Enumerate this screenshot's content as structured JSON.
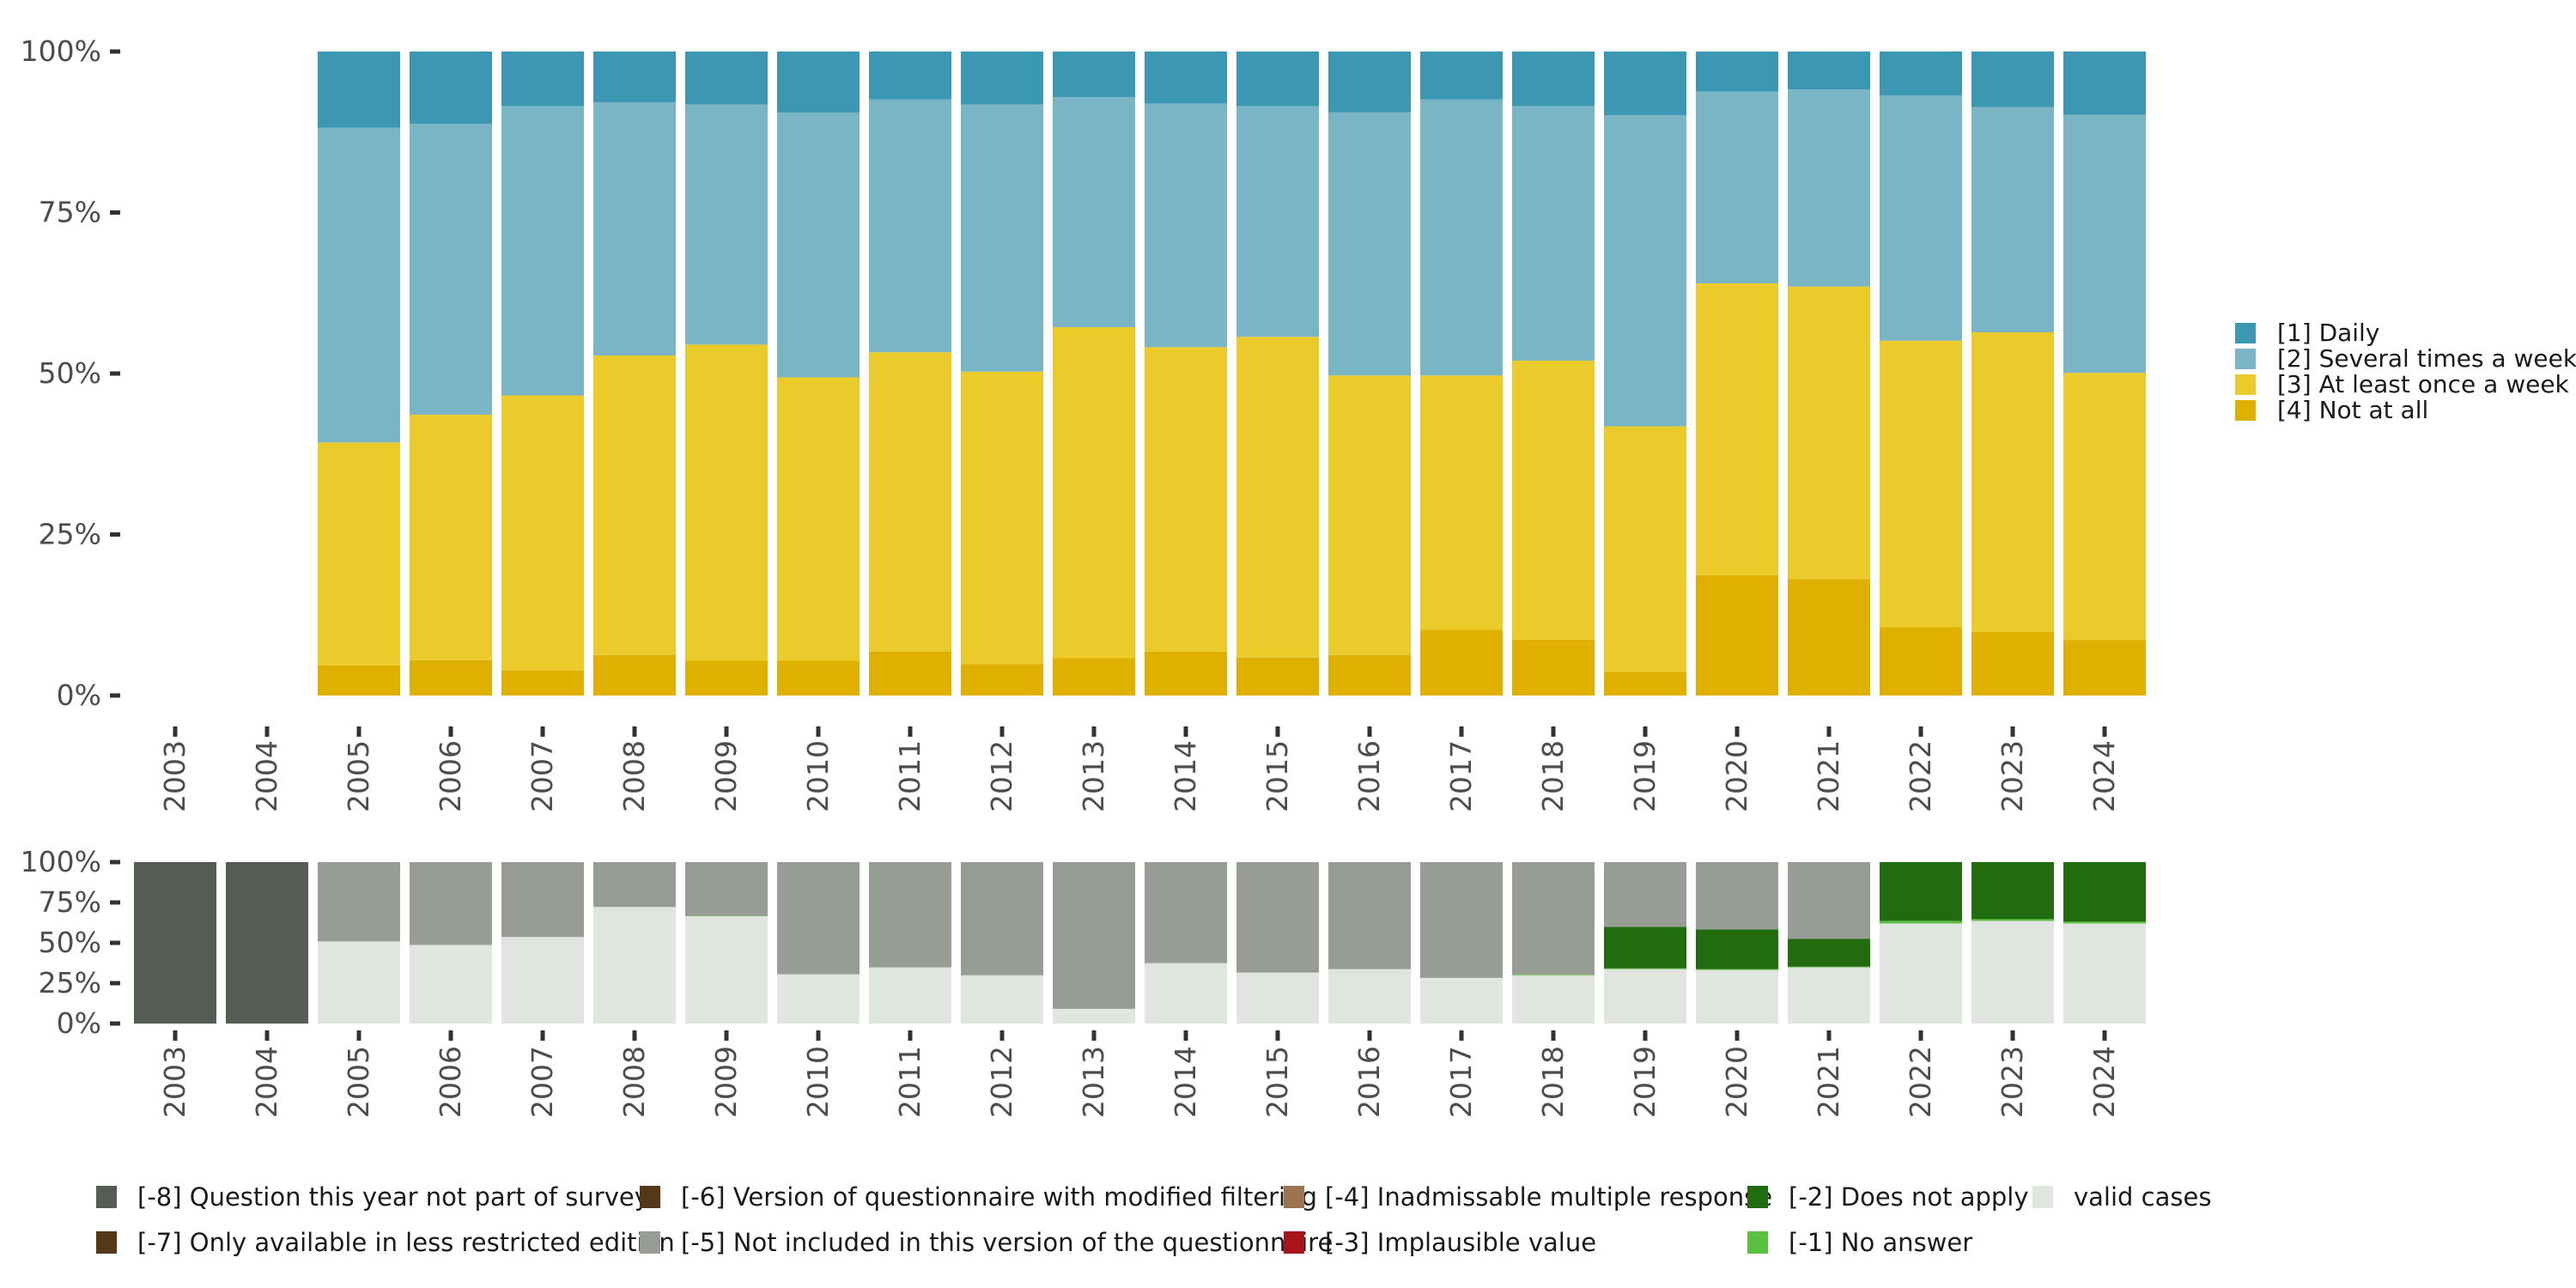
{
  "chart_data": [
    {
      "type": "bar",
      "stacked": true,
      "normalized": true,
      "title": "",
      "xlabel": "",
      "ylabel": "",
      "ylim": [
        0,
        100
      ],
      "y_ticks": [
        "0%",
        "25%",
        "50%",
        "75%",
        "100%"
      ],
      "y_tick_values": [
        0,
        25,
        50,
        75,
        100
      ],
      "categories": [
        "2003",
        "2004",
        "2005",
        "2006",
        "2007",
        "2008",
        "2009",
        "2010",
        "2011",
        "2012",
        "2013",
        "2014",
        "2015",
        "2016",
        "2017",
        "2018",
        "2019",
        "2020",
        "2021",
        "2022",
        "2023",
        "2024"
      ],
      "legend_position": "right",
      "series": [
        {
          "name": "[4] Not at all",
          "color": "#E0B000",
          "values": [
            null,
            null,
            4.7,
            5.5,
            3.9,
            6.3,
            5.4,
            5.4,
            6.8,
            4.9,
            5.8,
            6.8,
            5.9,
            6.3,
            10.2,
            8.7,
            3.7,
            18.7,
            18.1,
            10.6,
            9.9,
            8.6
          ]
        },
        {
          "name": "[3] At least once a week",
          "color": "#EACB2B",
          "values": [
            null,
            null,
            34.6,
            38.1,
            42.7,
            46.5,
            49.1,
            44.0,
            46.5,
            45.4,
            51.4,
            47.3,
            49.8,
            43.4,
            39.5,
            43.3,
            38.1,
            45.3,
            45.4,
            44.5,
            46.5,
            41.5
          ]
        },
        {
          "name": "[2] Several times a week",
          "color": "#79B5C5",
          "values": [
            null,
            null,
            48.9,
            45.2,
            44.9,
            39.3,
            37.3,
            41.1,
            39.3,
            41.5,
            35.7,
            37.8,
            35.8,
            40.9,
            42.9,
            39.5,
            48.3,
            29.8,
            30.6,
            38.1,
            35.0,
            40.1
          ]
        },
        {
          "name": "[1] Daily",
          "color": "#3C98B2",
          "values": [
            null,
            null,
            11.8,
            11.2,
            8.5,
            7.9,
            8.2,
            9.5,
            7.4,
            8.2,
            7.1,
            8.1,
            8.5,
            9.4,
            7.4,
            8.5,
            9.9,
            6.2,
            5.9,
            6.8,
            8.6,
            9.8
          ]
        }
      ],
      "legend": [
        {
          "label": "[1] Daily",
          "color": "#3C98B2"
        },
        {
          "label": "[2] Several times a week",
          "color": "#79B5C5"
        },
        {
          "label": "[3] At least once a week",
          "color": "#EACB2B"
        },
        {
          "label": "[4] Not at all",
          "color": "#E0B000"
        }
      ]
    },
    {
      "type": "bar",
      "stacked": true,
      "normalized": true,
      "title": "",
      "xlabel": "",
      "ylabel": "",
      "ylim": [
        0,
        100
      ],
      "y_ticks": [
        "0%",
        "25%",
        "50%",
        "75%",
        "100%"
      ],
      "y_tick_values": [
        0,
        25,
        50,
        75,
        100
      ],
      "categories": [
        "2003",
        "2004",
        "2005",
        "2006",
        "2007",
        "2008",
        "2009",
        "2010",
        "2011",
        "2012",
        "2013",
        "2014",
        "2015",
        "2016",
        "2017",
        "2018",
        "2019",
        "2020",
        "2021",
        "2022",
        "2023",
        "2024"
      ],
      "legend_position": "bottom",
      "series": [
        {
          "name": "valid cases",
          "color": "#E0E5E0",
          "values": [
            0,
            0,
            50.9,
            48.7,
            53.6,
            72.2,
            66.5,
            30.5,
            34.8,
            29.9,
            9.1,
            37.4,
            31.6,
            33.7,
            28.3,
            29.9,
            33.7,
            33.2,
            34.8,
            62.0,
            63.6,
            62.0
          ]
        },
        {
          "name": "[-1] No answer",
          "color": "#5BBF3F",
          "values": [
            0,
            0,
            0,
            0,
            0,
            0,
            0.3,
            0,
            0,
            0,
            0,
            0,
            0,
            0,
            0,
            0.4,
            0.5,
            0.5,
            0.4,
            1.6,
            1.1,
            1.1
          ]
        },
        {
          "name": "[-2] Does not apply",
          "color": "#226C10",
          "values": [
            0,
            0,
            0,
            0,
            0,
            0,
            0,
            0,
            0,
            0,
            0,
            0,
            0,
            0,
            0,
            0,
            25.7,
            24.6,
            17.2,
            36.4,
            35.3,
            36.9
          ]
        },
        {
          "name": "[-5] Not included in this version of the questionnaire",
          "color": "#979C94",
          "values": [
            0,
            0,
            49.1,
            51.3,
            46.4,
            27.8,
            33.2,
            69.5,
            65.2,
            70.1,
            90.9,
            62.6,
            68.4,
            66.3,
            71.7,
            69.7,
            40.1,
            41.7,
            47.6,
            0,
            0,
            0
          ]
        },
        {
          "name": "[-8] Question this year not part of survey",
          "color": "#555C55",
          "values": [
            100,
            100,
            0,
            0,
            0,
            0,
            0,
            0,
            0,
            0,
            0,
            0,
            0,
            0,
            0,
            0,
            0,
            0,
            0,
            0,
            0,
            0
          ]
        }
      ],
      "legend": [
        {
          "label": "[-8] Question this year not part of survey",
          "color": "#555C55"
        },
        {
          "label": "[-7] Only available in less restricted edition",
          "color": "#553818"
        },
        {
          "label": "[-6] Version of questionnaire with modified filtering",
          "color": "#553818"
        },
        {
          "label": "[-5] Not included in this version of the questionnaire",
          "color": "#979C94"
        },
        {
          "label": "[-4] Inadmissable multiple response",
          "color": "#9C7450"
        },
        {
          "label": "[-3] Implausible value",
          "color": "#A8161B"
        },
        {
          "label": "[-2] Does not apply",
          "color": "#226C10"
        },
        {
          "label": "[-1] No answer",
          "color": "#5BBF3F"
        },
        {
          "label": "valid cases",
          "color": "#E0E5E0"
        }
      ]
    }
  ]
}
